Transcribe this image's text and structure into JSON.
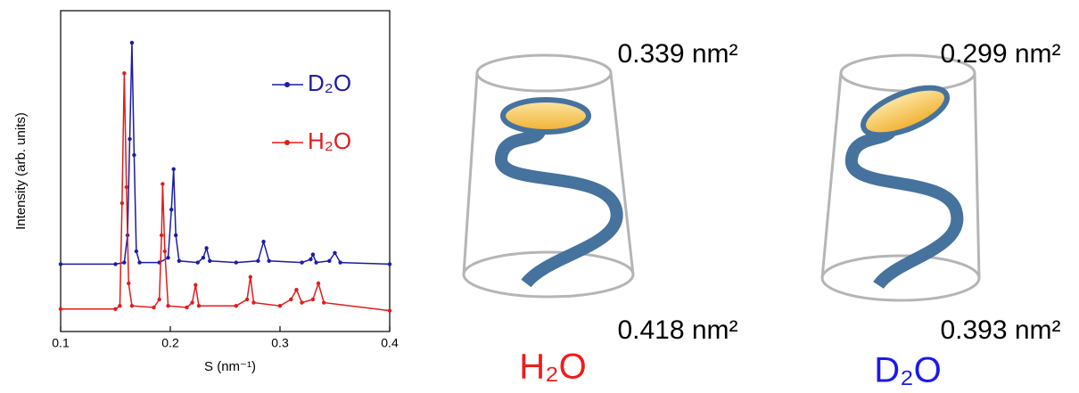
{
  "chart_data": {
    "type": "line",
    "xlabel": "S (nm⁻¹)",
    "ylabel": "Intensity (arb. units)",
    "xlim": [
      0.1,
      0.4
    ],
    "xticks": [
      0.1,
      0.2,
      0.3,
      0.4
    ],
    "ylim": [
      0,
      100
    ],
    "grid": false,
    "legend": "upper right",
    "series": [
      {
        "name": "D₂O",
        "color": "#1c1ca6",
        "x": [
          0.1,
          0.15,
          0.158,
          0.161,
          0.163,
          0.165,
          0.167,
          0.169,
          0.172,
          0.19,
          0.198,
          0.201,
          0.203,
          0.205,
          0.208,
          0.225,
          0.23,
          0.233,
          0.236,
          0.26,
          0.28,
          0.285,
          0.29,
          0.32,
          0.328,
          0.33,
          0.333,
          0.345,
          0.35,
          0.355,
          0.4
        ],
        "values": [
          21,
          21,
          21.5,
          30,
          60,
          90,
          55,
          25,
          21.5,
          21.5,
          23,
          38,
          50.6,
          30,
          22,
          21.5,
          23,
          26,
          22,
          21.5,
          22,
          28,
          22,
          21.5,
          22.5,
          24,
          21.5,
          22,
          24.5,
          21.5,
          21
        ]
      },
      {
        "name": "H₂O",
        "color": "#e01c1c",
        "x": [
          0.1,
          0.15,
          0.154,
          0.156,
          0.158,
          0.16,
          0.162,
          0.165,
          0.185,
          0.19,
          0.192,
          0.193,
          0.195,
          0.198,
          0.215,
          0.22,
          0.223,
          0.226,
          0.26,
          0.27,
          0.273,
          0.276,
          0.3,
          0.31,
          0.315,
          0.32,
          0.33,
          0.335,
          0.34,
          0.4
        ],
        "values": [
          7,
          7,
          8,
          40,
          80.5,
          45,
          15,
          8,
          7.5,
          10,
          30,
          46,
          25,
          8,
          7.5,
          9,
          14.5,
          8,
          8,
          10,
          17,
          9,
          8,
          10,
          13,
          9,
          10,
          15,
          9,
          6.5
        ]
      }
    ]
  },
  "diagrams": [
    {
      "top_area": "0.339 nm²",
      "bottom_area": "0.418 nm²",
      "label": "H₂O"
    },
    {
      "top_area": "0.299 nm²",
      "bottom_area": "0.393 nm²",
      "label": "D₂O"
    }
  ]
}
